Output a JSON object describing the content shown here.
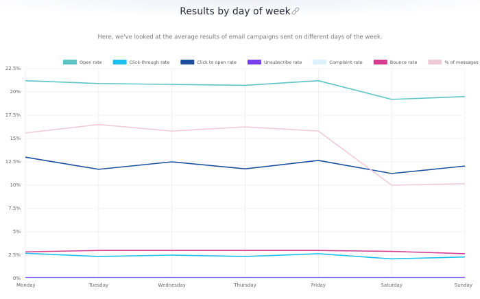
{
  "chart_data": {
    "type": "line",
    "title": "Results by day of week",
    "subtitle": "Here, we've looked at the average results of email campaigns sent on different days of the week.",
    "categories": [
      "Monday",
      "Tuesday",
      "Wednesday",
      "Thursday",
      "Friday",
      "Saturday",
      "Sunday"
    ],
    "series": [
      {
        "name": "Open rate",
        "color": "#5bc4c4",
        "values": [
          21.2,
          20.9,
          20.8,
          20.7,
          21.2,
          19.2,
          19.5
        ]
      },
      {
        "name": "Click-through rate",
        "color": "#1ec0f0",
        "values": [
          2.7,
          2.35,
          2.5,
          2.35,
          2.65,
          2.1,
          2.3
        ]
      },
      {
        "name": "Click to open rate",
        "color": "#1c4f9c",
        "values": [
          13.0,
          11.7,
          12.5,
          11.75,
          12.65,
          11.25,
          12.05
        ]
      },
      {
        "name": "Unsubscribe rate",
        "color": "#7a3ff0",
        "values": [
          0.1,
          0.1,
          0.1,
          0.1,
          0.1,
          0.1,
          0.1
        ]
      },
      {
        "name": "Complaint rate",
        "color": "#dcf2fa",
        "values": [
          0.02,
          0.02,
          0.02,
          0.02,
          0.02,
          0.02,
          0.02
        ]
      },
      {
        "name": "Bounce rate",
        "color": "#d63b8f",
        "values": [
          2.85,
          3.0,
          3.0,
          3.0,
          3.0,
          2.9,
          2.65
        ]
      },
      {
        "name": "% of messages",
        "color": "#efcbd8",
        "values": [
          15.6,
          16.5,
          15.8,
          16.25,
          15.8,
          10.0,
          10.15
        ]
      }
    ],
    "ylim": [
      0,
      22.5
    ],
    "yticks": [
      {
        "value": 0,
        "label": "0%"
      },
      {
        "value": 2.5,
        "label": "2.5%"
      },
      {
        "value": 5,
        "label": "5%"
      },
      {
        "value": 7.5,
        "label": "7.5%"
      },
      {
        "value": 10,
        "label": "10%"
      },
      {
        "value": 12.5,
        "label": "12.5%"
      },
      {
        "value": 15,
        "label": "15%"
      },
      {
        "value": 17.5,
        "label": "17.5%"
      },
      {
        "value": 20,
        "label": "20%"
      },
      {
        "value": 22.5,
        "label": "22.5%"
      }
    ],
    "grid": true
  }
}
